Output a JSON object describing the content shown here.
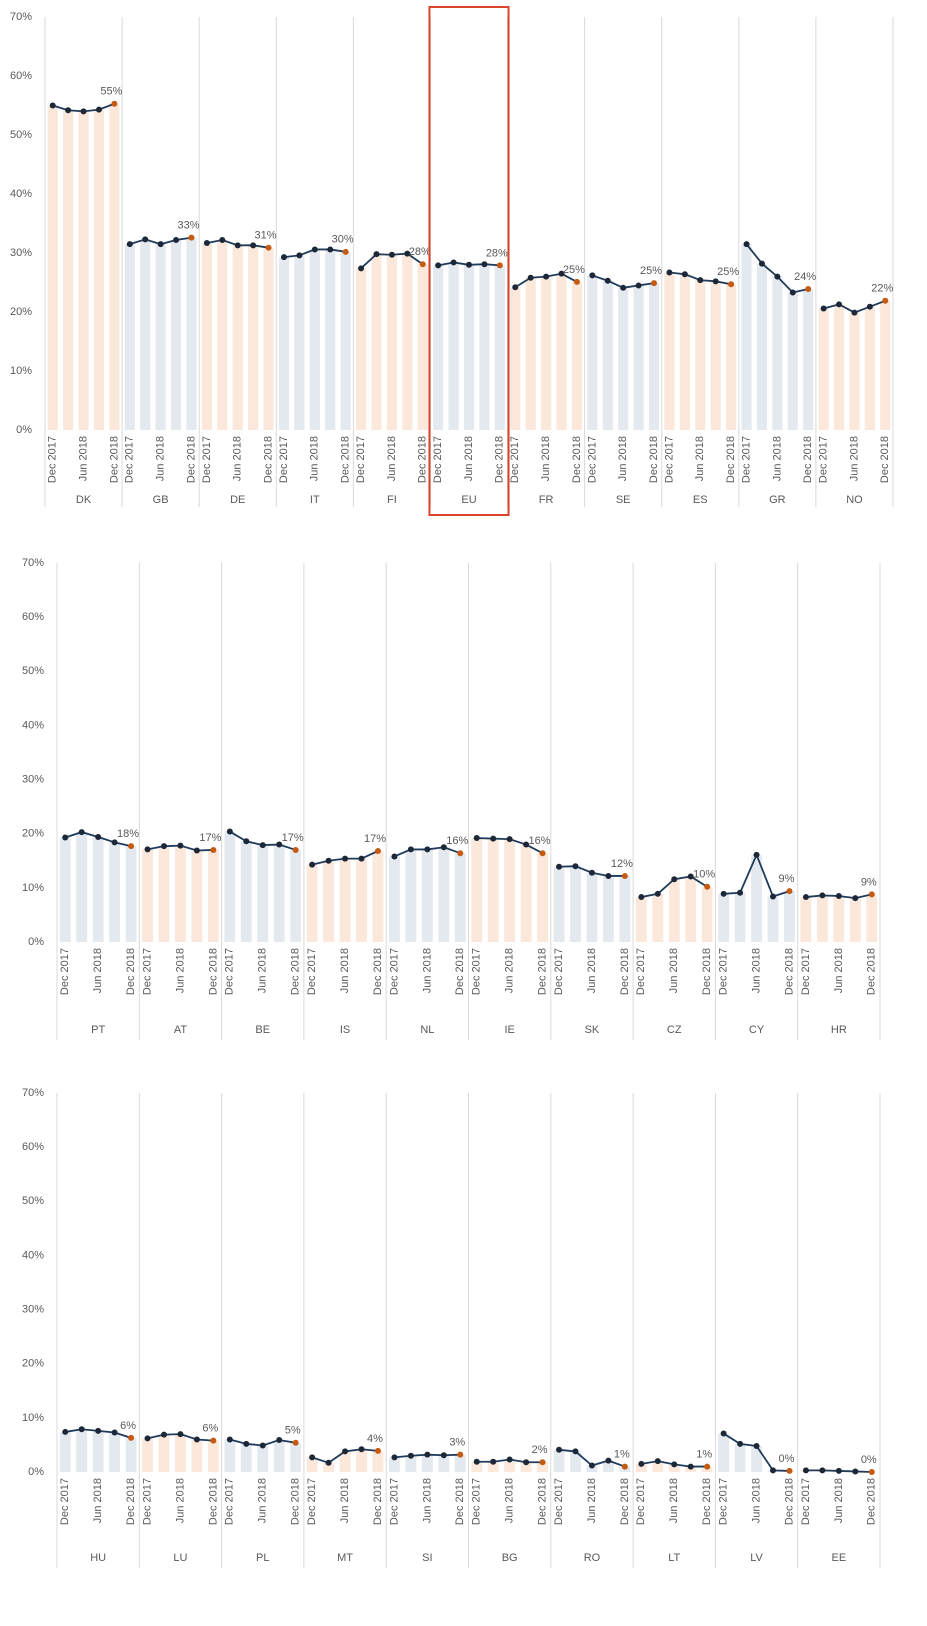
{
  "chart_data": [
    {
      "type": "bar_line",
      "ylim": [
        0,
        70
      ],
      "yticks": [
        {
          "value": 0,
          "label": "0%"
        },
        {
          "value": 10,
          "label": "10%"
        },
        {
          "value": 20,
          "label": "20%"
        },
        {
          "value": 30,
          "label": "30%"
        },
        {
          "value": 40,
          "label": "40%"
        },
        {
          "value": 50,
          "label": "50%"
        },
        {
          "value": 60,
          "label": "60%"
        },
        {
          "value": 70,
          "label": "70%"
        }
      ],
      "categories": [
        "Dec 2017",
        null,
        "Jun 2018",
        null,
        "Dec 2018"
      ],
      "bar_colors": [
        "#fce8da",
        "#e4e9f0"
      ],
      "line_color": "#1f3b5c",
      "point_color": "#1c2838",
      "last_point_color": "#c55a11",
      "groups": [
        {
          "name": "DK",
          "values": [
            55.0,
            54.2,
            54.0,
            54.3,
            55.3
          ],
          "label": "55%"
        },
        {
          "name": "GB",
          "values": [
            31.5,
            32.3,
            31.5,
            32.2,
            32.6
          ],
          "label": "33%"
        },
        {
          "name": "DE",
          "values": [
            31.7,
            32.2,
            31.3,
            31.3,
            30.9
          ],
          "label": "31%"
        },
        {
          "name": "IT",
          "values": [
            29.3,
            29.6,
            30.6,
            30.6,
            30.2
          ],
          "label": "30%"
        },
        {
          "name": "FI",
          "values": [
            27.4,
            29.8,
            29.7,
            29.9,
            28.1
          ],
          "label": "28%"
        },
        {
          "name": "EU",
          "values": [
            27.9,
            28.4,
            28.0,
            28.1,
            27.9
          ],
          "label": "28%",
          "highlight": true
        },
        {
          "name": "FR",
          "values": [
            24.2,
            25.8,
            26.0,
            26.5,
            25.1
          ],
          "label": "25%"
        },
        {
          "name": "SE",
          "values": [
            26.2,
            25.3,
            24.1,
            24.5,
            24.9
          ],
          "label": "25%"
        },
        {
          "name": "ES",
          "values": [
            26.7,
            26.4,
            25.4,
            25.2,
            24.7
          ],
          "label": "25%"
        },
        {
          "name": "GR",
          "values": [
            31.5,
            28.2,
            26.0,
            23.3,
            23.9
          ],
          "label": "24%"
        },
        {
          "name": "NO",
          "values": [
            20.6,
            21.3,
            19.9,
            20.9,
            21.9
          ],
          "label": "22%"
        }
      ]
    },
    {
      "type": "bar_line",
      "ylim": [
        0,
        70
      ],
      "yticks": [
        {
          "value": 0,
          "label": "0%"
        },
        {
          "value": 10,
          "label": "10%"
        },
        {
          "value": 20,
          "label": "20%"
        },
        {
          "value": 30,
          "label": "30%"
        },
        {
          "value": 40,
          "label": "40%"
        },
        {
          "value": 50,
          "label": "50%"
        },
        {
          "value": 60,
          "label": "60%"
        },
        {
          "value": 70,
          "label": "70%"
        }
      ],
      "categories": [
        "Dec 2017",
        null,
        "Jun 2018",
        null,
        "Dec 2018"
      ],
      "bar_colors": [
        "#e4e9f0",
        "#fce8da"
      ],
      "line_color": "#1f3b5c",
      "point_color": "#1c2838",
      "last_point_color": "#c55a11",
      "groups": [
        {
          "name": "PT",
          "values": [
            19.3,
            20.3,
            19.4,
            18.4,
            17.7
          ],
          "label": "18%"
        },
        {
          "name": "AT",
          "values": [
            17.1,
            17.7,
            17.8,
            16.9,
            17.0
          ],
          "label": "17%"
        },
        {
          "name": "BE",
          "values": [
            20.4,
            18.6,
            17.9,
            18.0,
            17.0
          ],
          "label": "17%"
        },
        {
          "name": "IS",
          "values": [
            14.3,
            15.0,
            15.4,
            15.4,
            16.8
          ],
          "label": "17%"
        },
        {
          "name": "NL",
          "values": [
            15.8,
            17.1,
            17.1,
            17.5,
            16.4
          ],
          "label": "16%"
        },
        {
          "name": "IE",
          "values": [
            19.2,
            19.1,
            19.0,
            18.0,
            16.4
          ],
          "label": "16%"
        },
        {
          "name": "SK",
          "values": [
            13.9,
            14.0,
            12.8,
            12.2,
            12.2
          ],
          "label": "12%"
        },
        {
          "name": "CZ",
          "values": [
            8.3,
            8.9,
            11.6,
            12.1,
            10.2
          ],
          "label": "10%"
        },
        {
          "name": "CY",
          "values": [
            8.9,
            9.1,
            16.1,
            8.4,
            9.4
          ],
          "label": "9%"
        },
        {
          "name": "HR",
          "values": [
            8.3,
            8.6,
            8.5,
            8.1,
            8.8
          ],
          "label": "9%"
        }
      ]
    },
    {
      "type": "bar_line",
      "ylim": [
        0,
        70
      ],
      "yticks": [
        {
          "value": 0,
          "label": "0%"
        },
        {
          "value": 10,
          "label": "10%"
        },
        {
          "value": 20,
          "label": "20%"
        },
        {
          "value": 30,
          "label": "30%"
        },
        {
          "value": 40,
          "label": "40%"
        },
        {
          "value": 50,
          "label": "50%"
        },
        {
          "value": 60,
          "label": "60%"
        },
        {
          "value": 70,
          "label": "70%"
        }
      ],
      "categories": [
        "Dec 2017",
        null,
        "Jun 2018",
        null,
        "Dec 2018"
      ],
      "bar_colors": [
        "#e4e9f0",
        "#fce8da"
      ],
      "line_color": "#1f3b5c",
      "point_color": "#1c2838",
      "last_point_color": "#c55a11",
      "groups": [
        {
          "name": "HU",
          "values": [
            7.4,
            7.9,
            7.6,
            7.3,
            6.3
          ],
          "label": "6%"
        },
        {
          "name": "LU",
          "values": [
            6.2,
            6.9,
            7.0,
            6.0,
            5.8
          ],
          "label": "6%"
        },
        {
          "name": "PL",
          "values": [
            6.0,
            5.2,
            4.9,
            5.9,
            5.4
          ],
          "label": "5%"
        },
        {
          "name": "MT",
          "values": [
            2.7,
            1.7,
            3.8,
            4.2,
            3.9
          ],
          "label": "4%"
        },
        {
          "name": "SI",
          "values": [
            2.7,
            3.0,
            3.2,
            3.1,
            3.2
          ],
          "label": "3%"
        },
        {
          "name": "BG",
          "values": [
            1.9,
            1.9,
            2.3,
            1.8,
            1.8
          ],
          "label": "2%"
        },
        {
          "name": "RO",
          "values": [
            4.1,
            3.8,
            1.2,
            2.1,
            1.0
          ],
          "label": "1%"
        },
        {
          "name": "LT",
          "values": [
            1.5,
            2.0,
            1.4,
            1.0,
            1.0
          ],
          "label": "1%"
        },
        {
          "name": "LV",
          "values": [
            7.1,
            5.2,
            4.8,
            0.3,
            0.2
          ],
          "label": "0%"
        },
        {
          "name": "EE",
          "values": [
            0.3,
            0.3,
            0.2,
            0.1,
            0.0
          ],
          "label": "0%"
        }
      ]
    }
  ]
}
